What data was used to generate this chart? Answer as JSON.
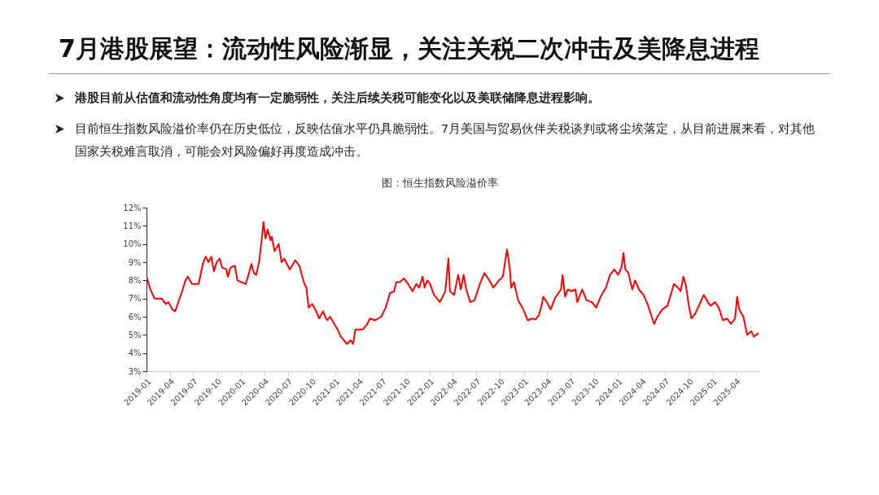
{
  "chart_data": {
    "type": "line",
    "title": "7月港股展望：流动性风险渐显，关注关税二次冲击及美降息进程",
    "subtitle": "图：恒生指数风险溢价率",
    "annotations": [
      "港股目前从估值和流动性角度均有一定脆弱性，关注后续关税可能变化以及美联储降息进程影响。",
      "目前恒生指数风险溢价率仍在历史低位，反映估值水平仍具脆弱性。7月美国与贸易伙伴关税谈判或将尘埃落定，从目前进展来看，对其他国家关税难言取消，可能会对风险偏好再度造成冲击。"
    ],
    "xlim": [
      "2019-01-01",
      "2025-07-01"
    ],
    "xticks": [
      "2019-01",
      "2019-04",
      "2019-07",
      "2019-10",
      "2020-01",
      "2020-04",
      "2020-07",
      "2020-10",
      "2021-01",
      "2021-04",
      "2021-07",
      "2021-10",
      "2022-01",
      "2022-04",
      "2022-07",
      "2022-10",
      "2023-01",
      "2023-04",
      "2023-07",
      "2023-10",
      "2024-01",
      "2024-04",
      "2024-07",
      "2024-10",
      "2025-01",
      "2025-04"
    ],
    "ylim": [
      3,
      12
    ],
    "yticks": [
      {
        "value": 3,
        "label": "3%"
      },
      {
        "value": 4,
        "label": "4%"
      },
      {
        "value": 5,
        "label": "5%"
      },
      {
        "value": 6,
        "label": "6%"
      },
      {
        "value": 7,
        "label": "7%"
      },
      {
        "value": 8,
        "label": "8%"
      },
      {
        "value": 9,
        "label": "9%"
      },
      {
        "value": 10,
        "label": "10%"
      },
      {
        "value": 11,
        "label": "11%"
      },
      {
        "value": 12,
        "label": "12%"
      }
    ],
    "grid": false,
    "series": [
      {
        "color": "#ff0000",
        "x": [
          "2019-01-01",
          "2019-01-16",
          "2019-02-01",
          "2019-03-01",
          "2019-03-16",
          "2019-03-27",
          "2019-04-11",
          "2019-04-22",
          "2019-05-19",
          "2019-06-01",
          "2019-06-10",
          "2019-06-26",
          "2019-07-22",
          "2019-08-07",
          "2019-08-18",
          "2019-08-29",
          "2019-09-09",
          "2019-09-19",
          "2019-09-30",
          "2019-10-11",
          "2019-10-21",
          "2019-11-06",
          "2019-11-12",
          "2019-11-22",
          "2019-12-09",
          "2019-12-19",
          "2020-01-04",
          "2020-01-20",
          "2020-01-31",
          "2020-02-11",
          "2020-02-21",
          "2020-03-01",
          "2020-03-13",
          "2020-03-24",
          "2020-03-29",
          "2020-04-06",
          "2020-04-14",
          "2020-04-25",
          "2020-04-30",
          "2020-05-11",
          "2020-05-27",
          "2020-06-07",
          "2020-06-17",
          "2020-07-09",
          "2020-07-30",
          "2020-08-15",
          "2020-09-01",
          "2020-09-11",
          "2020-09-20",
          "2020-10-03",
          "2020-10-19",
          "2020-10-30",
          "2020-11-15",
          "2020-11-26",
          "2020-12-01",
          "2020-12-12",
          "2020-12-28",
          "2021-01-10",
          "2021-01-22",
          "2021-01-29",
          "2021-02-15",
          "2021-03-01",
          "2021-03-11",
          "2021-03-20",
          "2021-04-18",
          "2021-05-05",
          "2021-05-15",
          "2021-06-05",
          "2021-06-28",
          "2021-07-15",
          "2021-08-01",
          "2021-08-17",
          "2021-08-25",
          "2021-09-08",
          "2021-09-24",
          "2021-10-10",
          "2021-10-27",
          "2021-11-11",
          "2021-11-22",
          "2021-12-05",
          "2021-12-13",
          "2021-12-23",
          "2022-01-03",
          "2022-01-18",
          "2022-02-10",
          "2022-03-03",
          "2022-03-15",
          "2022-03-21",
          "2022-04-06",
          "2022-04-22",
          "2022-05-02",
          "2022-05-13",
          "2022-05-23",
          "2022-06-08",
          "2022-06-24",
          "2022-07-15",
          "2022-08-01",
          "2022-08-16",
          "2022-09-05",
          "2022-09-27",
          "2022-10-12",
          "2022-10-28",
          "2022-11-08",
          "2022-11-13",
          "2022-11-24",
          "2022-12-10",
          "2022-12-30",
          "2023-01-16",
          "2023-02-01",
          "2023-02-15",
          "2023-03-01",
          "2023-03-12",
          "2023-03-17",
          "2023-03-31",
          "2023-04-15",
          "2023-05-01",
          "2023-05-15",
          "2023-05-25",
          "2023-05-31",
          "2023-06-10",
          "2023-06-20",
          "2023-07-05",
          "2023-07-20",
          "2023-07-27",
          "2023-08-15",
          "2023-09-01",
          "2023-09-22",
          "2023-10-08",
          "2023-10-29",
          "2023-11-15",
          "2023-12-01",
          "2023-12-18",
          "2024-01-01",
          "2024-01-14",
          "2024-01-22",
          "2024-01-29",
          "2024-02-10",
          "2024-02-25",
          "2024-03-07",
          "2024-03-22",
          "2024-04-08",
          "2024-04-24",
          "2024-05-10",
          "2024-05-20",
          "2024-06-01",
          "2024-06-20",
          "2024-07-10",
          "2024-07-25",
          "2024-08-04",
          "2024-08-20",
          "2024-08-30",
          "2024-09-10",
          "2024-09-20",
          "2024-10-01",
          "2024-10-11",
          "2024-10-27",
          "2024-11-12",
          "2024-11-28",
          "2024-12-14",
          "2024-12-24",
          "2025-01-10",
          "2025-01-25",
          "2025-02-10",
          "2025-02-26",
          "2025-03-13",
          "2025-03-29",
          "2025-04-06",
          "2025-04-14",
          "2025-04-30",
          "2025-05-15",
          "2025-05-31",
          "2025-06-10",
          "2025-06-28"
        ],
        "values": [
          8.2,
          7.5,
          7.0,
          7.0,
          6.7,
          6.8,
          6.4,
          6.3,
          7.4,
          8.0,
          8.2,
          7.8,
          7.8,
          8.9,
          9.3,
          9.0,
          9.3,
          8.5,
          9.0,
          9.2,
          8.7,
          8.6,
          8.2,
          8.7,
          8.8,
          8.0,
          7.9,
          7.8,
          8.3,
          8.9,
          8.4,
          8.3,
          9.1,
          10.5,
          11.2,
          10.3,
          10.8,
          10.2,
          10.4,
          9.6,
          10.0,
          9.0,
          9.2,
          8.6,
          9.1,
          8.8,
          7.9,
          7.6,
          6.5,
          6.7,
          6.3,
          5.9,
          6.3,
          5.9,
          5.8,
          6.0,
          5.6,
          5.3,
          4.9,
          4.8,
          4.5,
          4.7,
          4.5,
          5.3,
          5.3,
          5.6,
          5.9,
          5.8,
          6.0,
          6.5,
          7.3,
          7.4,
          7.9,
          7.9,
          8.1,
          7.8,
          7.4,
          7.8,
          7.6,
          8.2,
          7.6,
          8.0,
          7.8,
          7.2,
          6.8,
          7.4,
          9.2,
          7.4,
          7.2,
          8.3,
          7.5,
          8.3,
          7.5,
          6.8,
          6.9,
          7.8,
          8.4,
          8.1,
          7.6,
          8.0,
          8.2,
          9.7,
          8.6,
          7.6,
          7.9,
          6.9,
          6.4,
          5.8,
          5.9,
          5.85,
          6.1,
          6.7,
          7.1,
          6.8,
          6.4,
          7.0,
          7.3,
          7.5,
          8.3,
          7.1,
          7.5,
          7.4,
          7.5,
          6.8,
          7.5,
          6.9,
          6.8,
          6.5,
          7.2,
          7.6,
          8.3,
          8.6,
          8.3,
          8.7,
          9.5,
          8.6,
          8.4,
          7.5,
          8.0,
          7.5,
          7.2,
          6.7,
          6.0,
          5.6,
          6.0,
          6.4,
          6.6,
          7.3,
          7.8,
          7.6,
          7.4,
          8.2,
          7.7,
          6.6,
          5.9,
          6.2,
          6.7,
          7.2,
          6.8,
          6.6,
          6.8,
          6.5,
          5.8,
          5.9,
          5.6,
          5.9,
          7.1,
          6.4,
          6.0,
          5.0,
          5.2,
          4.9,
          5.1
        ]
      }
    ]
  }
}
